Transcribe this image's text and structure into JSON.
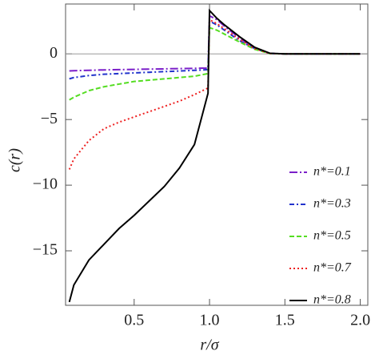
{
  "chart_data": {
    "type": "line",
    "x_label": "r/σ",
    "y_label": "c(r)",
    "x": [
      0.07,
      0.1,
      0.2,
      0.3,
      0.4,
      0.5,
      0.6,
      0.7,
      0.8,
      0.9,
      0.99,
      1.0,
      1.05,
      1.1,
      1.2,
      1.3,
      1.4,
      1.5,
      1.6,
      1.7,
      1.8,
      1.9,
      2.0
    ],
    "series": [
      {
        "name": "n*=0.1",
        "color": "#7b1fc9",
        "dash": "10 3 2 3",
        "values": [
          -1.3,
          -1.28,
          -1.25,
          -1.22,
          -1.2,
          -1.18,
          -1.16,
          -1.14,
          -1.12,
          -1.1,
          -1.08,
          2.9,
          2.6,
          2.1,
          1.2,
          0.45,
          0.04,
          0,
          0,
          0,
          0,
          0,
          0
        ]
      },
      {
        "name": "n*=0.3",
        "color": "#2233cc",
        "dash": "6 3 2 3",
        "values": [
          -1.9,
          -1.8,
          -1.65,
          -1.55,
          -1.5,
          -1.45,
          -1.4,
          -1.35,
          -1.3,
          -1.25,
          -1.2,
          2.5,
          2.2,
          1.8,
          1.0,
          0.4,
          0.03,
          0,
          0,
          0,
          0,
          0,
          0
        ]
      },
      {
        "name": "n*=0.5",
        "color": "#55dd22",
        "dash": "6 3",
        "values": [
          -3.5,
          -3.3,
          -2.8,
          -2.5,
          -2.3,
          -2.1,
          -2.0,
          -1.9,
          -1.8,
          -1.7,
          -1.5,
          2.0,
          1.8,
          1.5,
          0.9,
          0.35,
          0.03,
          0,
          0,
          0,
          0,
          0,
          0
        ]
      },
      {
        "name": "n*=0.7",
        "color": "#ee2222",
        "dash": "2 3",
        "values": [
          -8.8,
          -8.0,
          -6.6,
          -5.7,
          -5.2,
          -4.8,
          -4.4,
          -4.0,
          -3.6,
          -3.1,
          -2.6,
          2.6,
          2.3,
          1.9,
          1.1,
          0.4,
          0.03,
          0,
          0,
          0,
          0,
          0,
          0
        ]
      },
      {
        "name": "n*=0.8",
        "color": "#000000",
        "dash": "none",
        "values": [
          -18.9,
          -17.6,
          -15.7,
          -14.5,
          -13.3,
          -12.3,
          -11.2,
          -10.1,
          -8.7,
          -6.9,
          -3.0,
          3.3,
          2.7,
          2.2,
          1.3,
          0.5,
          0.05,
          0,
          0,
          0,
          0,
          0,
          0
        ]
      }
    ],
    "xlim": [
      0.045,
      2.05
    ],
    "ylim": [
      -19.15,
      3.8
    ],
    "xticks": [
      0.5,
      {
        "value": 1,
        "label": "1.0"
      },
      1.5,
      {
        "value": 2,
        "label": "2.0"
      }
    ],
    "yticks": [
      {
        "value": -15,
        "label": "−15"
      },
      {
        "value": -10,
        "label": "−10"
      },
      {
        "value": -5,
        "label": "−5"
      },
      0
    ],
    "zero_line": true,
    "legend": "lower right"
  }
}
